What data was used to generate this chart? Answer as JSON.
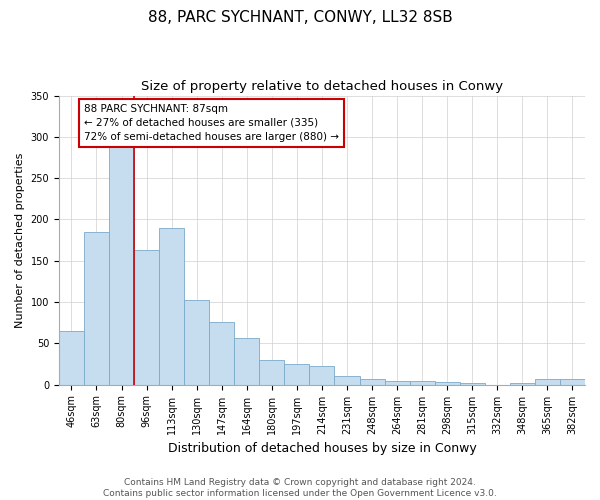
{
  "title": "88, PARC SYCHNANT, CONWY, LL32 8SB",
  "subtitle": "Size of property relative to detached houses in Conwy",
  "xlabel": "Distribution of detached houses by size in Conwy",
  "ylabel": "Number of detached properties",
  "categories": [
    "46sqm",
    "63sqm",
    "80sqm",
    "96sqm",
    "113sqm",
    "130sqm",
    "147sqm",
    "164sqm",
    "180sqm",
    "197sqm",
    "214sqm",
    "231sqm",
    "248sqm",
    "264sqm",
    "281sqm",
    "298sqm",
    "315sqm",
    "332sqm",
    "348sqm",
    "365sqm",
    "382sqm"
  ],
  "values": [
    65,
    185,
    295,
    163,
    190,
    103,
    76,
    57,
    30,
    25,
    23,
    10,
    7,
    5,
    5,
    3,
    2,
    0,
    2,
    7,
    7
  ],
  "bar_color": "#c5ddef",
  "bar_edge_color": "#7aaac8",
  "vline_x": 2.5,
  "vline_color": "#cc0000",
  "annotation_text": "88 PARC SYCHNANT: 87sqm\n← 27% of detached houses are smaller (335)\n72% of semi-detached houses are larger (880) →",
  "annotation_box_color": "white",
  "annotation_box_edge": "#cc0000",
  "ylim": [
    0,
    350
  ],
  "yticks": [
    0,
    50,
    100,
    150,
    200,
    250,
    300,
    350
  ],
  "footer": "Contains HM Land Registry data © Crown copyright and database right 2024.\nContains public sector information licensed under the Open Government Licence v3.0.",
  "title_fontsize": 11,
  "subtitle_fontsize": 9.5,
  "xlabel_fontsize": 9,
  "ylabel_fontsize": 8,
  "footer_fontsize": 6.5,
  "tick_fontsize": 7,
  "annot_fontsize": 7.5
}
